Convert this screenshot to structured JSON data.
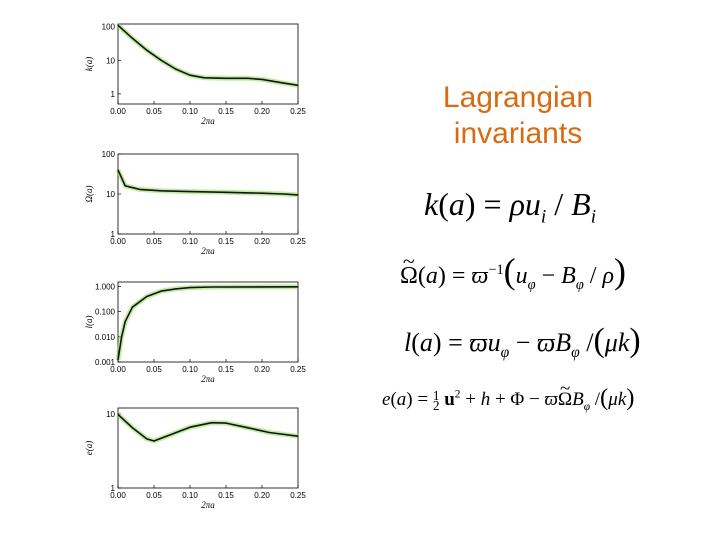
{
  "title": {
    "line1": "Lagrangian",
    "line2": "invariants"
  },
  "equations": {
    "k": "k(a) = ρu_i / B_i",
    "omega": "Ω̃(a) = ϖ^-1 (u_φ − B_φ / ρ)",
    "l": "l(a) = ϖu_φ − ϖB_φ / (μk)",
    "e": "e(a) = ½u² + h + Φ − ϖΩ̃B_φ / (μk)"
  },
  "chart_data": [
    {
      "type": "line",
      "ylabel": "k(a)",
      "xlabel": "2πa",
      "xticks": [
        "0.00",
        "0.05",
        "0.10",
        "0.15",
        "0.20",
        "0.25"
      ],
      "yticks": [
        "100",
        "10",
        "1"
      ],
      "ylim": [
        0.5,
        120
      ],
      "series": [
        {
          "values": [
            [
              0,
              110
            ],
            [
              0.02,
              45
            ],
            [
              0.04,
              20
            ],
            [
              0.06,
              10
            ],
            [
              0.08,
              5.5
            ],
            [
              0.1,
              3.6
            ],
            [
              0.12,
              3.0
            ],
            [
              0.15,
              2.9
            ],
            [
              0.18,
              2.9
            ],
            [
              0.2,
              2.7
            ],
            [
              0.23,
              2.1
            ],
            [
              0.25,
              1.8
            ]
          ]
        }
      ]
    },
    {
      "type": "line",
      "ylabel": "Ω(a)",
      "xlabel": "2πa",
      "xticks": [
        "0.00",
        "0.05",
        "0.10",
        "0.15",
        "0.20",
        "0.25"
      ],
      "yticks": [
        "100",
        "10",
        "1"
      ],
      "ylim": [
        1,
        100
      ],
      "series": [
        {
          "values": [
            [
              0,
              40
            ],
            [
              0.01,
              16
            ],
            [
              0.03,
              13
            ],
            [
              0.06,
              12
            ],
            [
              0.1,
              11.5
            ],
            [
              0.15,
              11
            ],
            [
              0.2,
              10.5
            ],
            [
              0.23,
              10
            ],
            [
              0.25,
              9.5
            ]
          ]
        }
      ]
    },
    {
      "type": "line",
      "ylabel": "l(a)",
      "xlabel": "2πa",
      "xticks": [
        "0.00",
        "0.05",
        "0.10",
        "0.15",
        "0.20",
        "0.25"
      ],
      "yticks": [
        "1.000",
        "0.100",
        "0.010",
        "0.001"
      ],
      "ylim": [
        0.001,
        1.5
      ],
      "series": [
        {
          "values": [
            [
              0,
              0.0012
            ],
            [
              0.005,
              0.01
            ],
            [
              0.01,
              0.04
            ],
            [
              0.02,
              0.15
            ],
            [
              0.04,
              0.4
            ],
            [
              0.06,
              0.65
            ],
            [
              0.08,
              0.8
            ],
            [
              0.1,
              0.9
            ],
            [
              0.13,
              0.95
            ],
            [
              0.25,
              0.97
            ]
          ]
        }
      ]
    },
    {
      "type": "line",
      "ylabel": "e(a)",
      "xlabel": "2πa",
      "xticks": [
        "0.00",
        "0.05",
        "0.10",
        "0.15",
        "0.20",
        "0.25"
      ],
      "yticks": [
        "10",
        "1"
      ],
      "ylim": [
        1,
        12
      ],
      "series": [
        {
          "values": [
            [
              0,
              9.8
            ],
            [
              0.02,
              6.5
            ],
            [
              0.04,
              4.6
            ],
            [
              0.05,
              4.3
            ],
            [
              0.07,
              5.1
            ],
            [
              0.1,
              6.6
            ],
            [
              0.13,
              7.6
            ],
            [
              0.15,
              7.5
            ],
            [
              0.18,
              6.5
            ],
            [
              0.21,
              5.6
            ],
            [
              0.25,
              5.0
            ]
          ]
        }
      ]
    }
  ]
}
